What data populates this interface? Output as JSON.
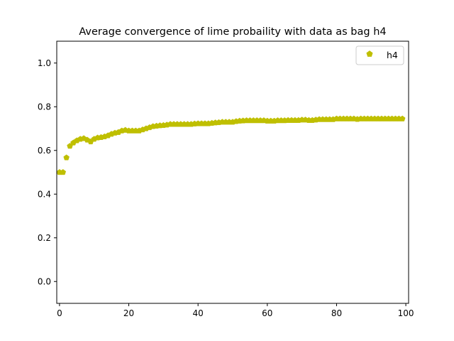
{
  "chart_data": {
    "type": "scatter",
    "title": "Average convergence of lime probaility with data as bag h4",
    "xlabel": "",
    "ylabel": "",
    "xlim": [
      -0.8,
      100.8
    ],
    "ylim": [
      -0.1,
      1.1
    ],
    "xticks": [
      0,
      20,
      40,
      60,
      80,
      100
    ],
    "xtick_labels": [
      "0",
      "20",
      "40",
      "60",
      "80",
      "100"
    ],
    "yticks": [
      0.0,
      0.2,
      0.4,
      0.6,
      0.8,
      1.0
    ],
    "ytick_labels": [
      "0.0",
      "0.2",
      "0.4",
      "0.6",
      "0.8",
      "1.0"
    ],
    "grid": false,
    "legend_position": "top-right",
    "series": [
      {
        "name": "h4",
        "color": "#bfbf00",
        "marker": "pentagon",
        "x": [
          0,
          1,
          2,
          3,
          4,
          5,
          6,
          7,
          8,
          9,
          10,
          11,
          12,
          13,
          14,
          15,
          16,
          17,
          18,
          19,
          20,
          21,
          22,
          23,
          24,
          25,
          26,
          27,
          28,
          29,
          30,
          31,
          32,
          33,
          34,
          35,
          36,
          37,
          38,
          39,
          40,
          41,
          42,
          43,
          44,
          45,
          46,
          47,
          48,
          49,
          50,
          51,
          52,
          53,
          54,
          55,
          56,
          57,
          58,
          59,
          60,
          61,
          62,
          63,
          64,
          65,
          66,
          67,
          68,
          69,
          70,
          71,
          72,
          73,
          74,
          75,
          76,
          77,
          78,
          79,
          80,
          81,
          82,
          83,
          84,
          85,
          86,
          87,
          88,
          89,
          90,
          91,
          92,
          93,
          94,
          95,
          96,
          97,
          98,
          99
        ],
        "y": [
          0.5,
          0.5,
          0.567,
          0.62,
          0.635,
          0.645,
          0.652,
          0.655,
          0.648,
          0.64,
          0.652,
          0.658,
          0.66,
          0.663,
          0.668,
          0.675,
          0.68,
          0.683,
          0.69,
          0.693,
          0.69,
          0.69,
          0.69,
          0.69,
          0.695,
          0.7,
          0.705,
          0.71,
          0.712,
          0.714,
          0.715,
          0.717,
          0.72,
          0.72,
          0.72,
          0.72,
          0.72,
          0.72,
          0.72,
          0.722,
          0.723,
          0.723,
          0.723,
          0.723,
          0.725,
          0.727,
          0.728,
          0.73,
          0.73,
          0.73,
          0.73,
          0.733,
          0.735,
          0.736,
          0.737,
          0.737,
          0.737,
          0.737,
          0.737,
          0.737,
          0.735,
          0.735,
          0.735,
          0.737,
          0.737,
          0.737,
          0.738,
          0.738,
          0.738,
          0.738,
          0.74,
          0.74,
          0.738,
          0.738,
          0.74,
          0.742,
          0.742,
          0.742,
          0.742,
          0.742,
          0.745,
          0.745,
          0.745,
          0.745,
          0.745,
          0.745,
          0.743,
          0.745,
          0.745,
          0.745,
          0.745,
          0.745,
          0.745,
          0.745,
          0.745,
          0.745,
          0.745,
          0.745,
          0.745,
          0.745
        ]
      }
    ]
  }
}
